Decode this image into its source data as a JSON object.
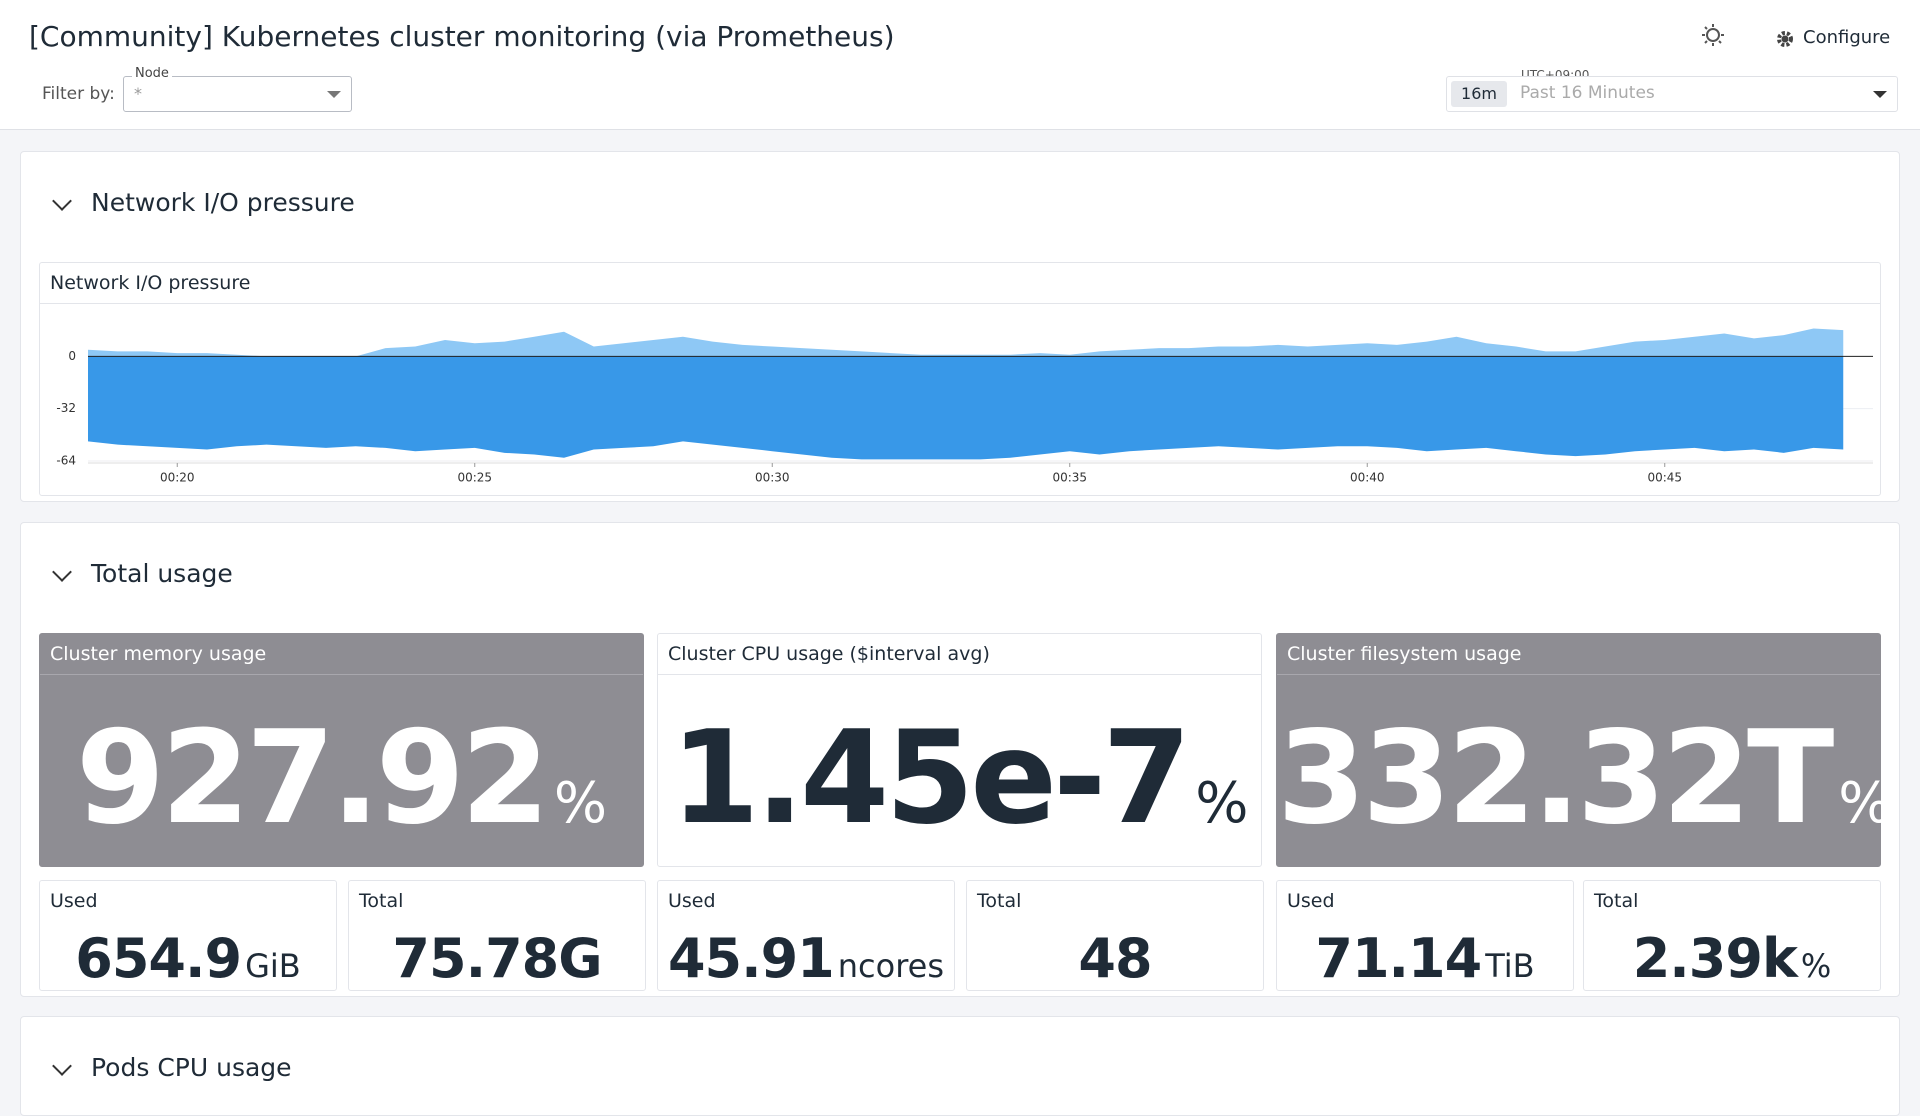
{
  "header": {
    "title": "[Community] Kubernetes cluster monitoring (via Prometheus)",
    "filter_label": "Filter by:",
    "node_label": "Node",
    "node_value": "*",
    "timezone": "UTC+09:00",
    "range_badge": "16m",
    "range_text": "Past 16 Minutes",
    "configure": "Configure"
  },
  "sections": [
    {
      "title": "Network I/O pressure"
    },
    {
      "title": "Total usage"
    },
    {
      "title": "Pods CPU usage"
    }
  ],
  "network_chart": {
    "type": "area",
    "title": "Network I/O pressure",
    "xlim": [
      18.5,
      48.5
    ],
    "xticks": [
      {
        "value": 20,
        "label": "00:20"
      },
      {
        "value": 25,
        "label": "00:25"
      },
      {
        "value": 30,
        "label": "00:30"
      },
      {
        "value": 35,
        "label": "00:35"
      },
      {
        "value": 40,
        "label": "00:40"
      },
      {
        "value": 45,
        "label": "00:45"
      }
    ],
    "ylim": [
      -64,
      32
    ],
    "yticks": [
      -64,
      -32,
      0
    ],
    "x": [
      18.5,
      19,
      19.5,
      20,
      20.5,
      21,
      21.5,
      22,
      22.5,
      23,
      23.5,
      24,
      24.5,
      25,
      25.5,
      26,
      26.5,
      27,
      27.5,
      28,
      28.5,
      29,
      29.5,
      30,
      30.5,
      31,
      31.5,
      32,
      32.5,
      33,
      33.5,
      34,
      34.5,
      35,
      35.5,
      36,
      36.5,
      37,
      37.5,
      38,
      38.5,
      39,
      39.5,
      40,
      40.5,
      41,
      41.5,
      42,
      42.5,
      43,
      43.5,
      44,
      44.5,
      45,
      45.5,
      46,
      46.5,
      47,
      47.5,
      48
    ],
    "series": [
      {
        "color": "#8ec8f5",
        "values": [
          4,
          3,
          3,
          2,
          2,
          1,
          0,
          0,
          0,
          0,
          5,
          6,
          10,
          8,
          9,
          12,
          15,
          6,
          8,
          10,
          12,
          9,
          7,
          6,
          5,
          4,
          3,
          2,
          1,
          1,
          1,
          1,
          2,
          1,
          3,
          4,
          5,
          5,
          6,
          6,
          7,
          6,
          7,
          8,
          7,
          9,
          12,
          8,
          6,
          3,
          3,
          6,
          9,
          10,
          12,
          14,
          11,
          13,
          17,
          16
        ]
      },
      {
        "color": "#3898e8",
        "values": [
          -52,
          -54,
          -55,
          -56,
          -57,
          -55,
          -54,
          -55,
          -56,
          -55,
          -56,
          -58,
          -57,
          -56,
          -59,
          -60,
          -62,
          -57,
          -56,
          -55,
          -52,
          -54,
          -56,
          -58,
          -60,
          -62,
          -63,
          -63,
          -63,
          -63,
          -63,
          -62,
          -60,
          -58,
          -60,
          -58,
          -57,
          -56,
          -55,
          -56,
          -57,
          -56,
          -55,
          -55,
          -56,
          -58,
          -57,
          -56,
          -58,
          -60,
          -61,
          -60,
          -58,
          -57,
          -56,
          -58,
          -57,
          -59,
          -56,
          -57
        ]
      }
    ]
  },
  "stats": [
    {
      "title": "Cluster memory usage",
      "value": "927.92",
      "unit": "%",
      "gray": true
    },
    {
      "title": "Cluster CPU usage ($interval avg)",
      "value": "1.45e-7",
      "unit": "%",
      "gray": false
    },
    {
      "title": "Cluster filesystem usage",
      "value": "332.32T",
      "unit": "%",
      "gray": true
    }
  ],
  "substats": [
    {
      "title": "Used",
      "value": "654.9",
      "unit": "GiB"
    },
    {
      "title": "Total",
      "value": "75.78G"
    },
    {
      "title": "Used",
      "value": "45.91",
      "unit": "ncores"
    },
    {
      "title": "Total",
      "value": "48"
    },
    {
      "title": "Used",
      "value": "71.14",
      "unit": "TiB"
    },
    {
      "title": "Total",
      "value": "2.39k",
      "unit": "%"
    }
  ]
}
